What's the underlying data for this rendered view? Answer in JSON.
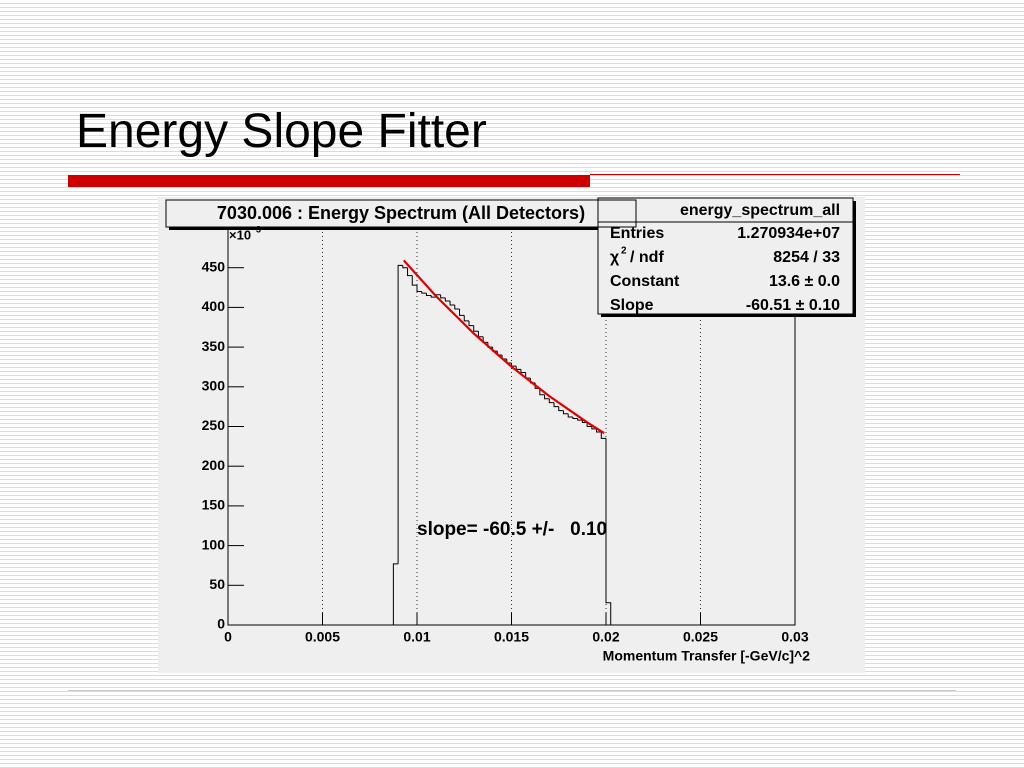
{
  "slide_title": "Energy Slope Fitter",
  "chart_data": {
    "type": "histogram",
    "title": "7030.006 : Energy Spectrum (All Detectors)",
    "x_label": "Momentum Transfer [-GeV/c]^2",
    "y_multiplier": {
      "base": "×10",
      "exponent": "3"
    },
    "xlim": [
      0,
      0.03
    ],
    "ylim": [
      0,
      500
    ],
    "xticks": [
      0,
      0.005,
      0.01,
      0.015,
      0.02,
      0.025,
      0.03
    ],
    "yticks": [
      0,
      50,
      100,
      150,
      200,
      250,
      300,
      350,
      400,
      450
    ],
    "x_grid": true,
    "color": "#000000",
    "bins": [
      0.00875,
      0.009,
      0.00925,
      0.0095,
      0.00975,
      0.01,
      0.01025,
      0.0105,
      0.01075,
      0.011,
      0.01125,
      0.0115,
      0.01175,
      0.012,
      0.01225,
      0.0125,
      0.01275,
      0.013,
      0.01325,
      0.0135,
      0.01375,
      0.014,
      0.01425,
      0.0145,
      0.01475,
      0.015,
      0.01525,
      0.0155,
      0.01575,
      0.016,
      0.01625,
      0.0165,
      0.01675,
      0.017,
      0.01725,
      0.0175,
      0.01775,
      0.018,
      0.01825,
      0.0185,
      0.01875,
      0.019,
      0.01925,
      0.0195,
      0.01975,
      0.02,
      0.02025
    ],
    "values": [
      77,
      453,
      450,
      440,
      428,
      420,
      418,
      415,
      413,
      416,
      412,
      408,
      403,
      398,
      390,
      383,
      377,
      370,
      363,
      356,
      350,
      345,
      340,
      335,
      330,
      326,
      322,
      318,
      311,
      305,
      298,
      290,
      285,
      280,
      275,
      270,
      266,
      262,
      260,
      258,
      255,
      250,
      247,
      243,
      235,
      28
    ],
    "fit": {
      "color": "#e00000",
      "x": [
        0.0093,
        0.011,
        0.013,
        0.015,
        0.017,
        0.019,
        0.0199
      ],
      "values": [
        459.2,
        414.3,
        367.2,
        325.3,
        288.2,
        255.3,
        241.8
      ]
    },
    "annotation": "slope= -60.5 +/-   0.10",
    "stats": {
      "name": "energy_spectrum_all",
      "rows": [
        {
          "label": "Entries",
          "value": "1.270934e+07"
        },
        {
          "label": "χ",
          "label_sup": "2",
          "label_rest": "/ ndf",
          "value": "8254 / 33"
        },
        {
          "label": "Constant",
          "value": "13.6 ± 0.0"
        },
        {
          "label": "Slope",
          "value": "-60.51 ± 0.10"
        }
      ]
    }
  }
}
